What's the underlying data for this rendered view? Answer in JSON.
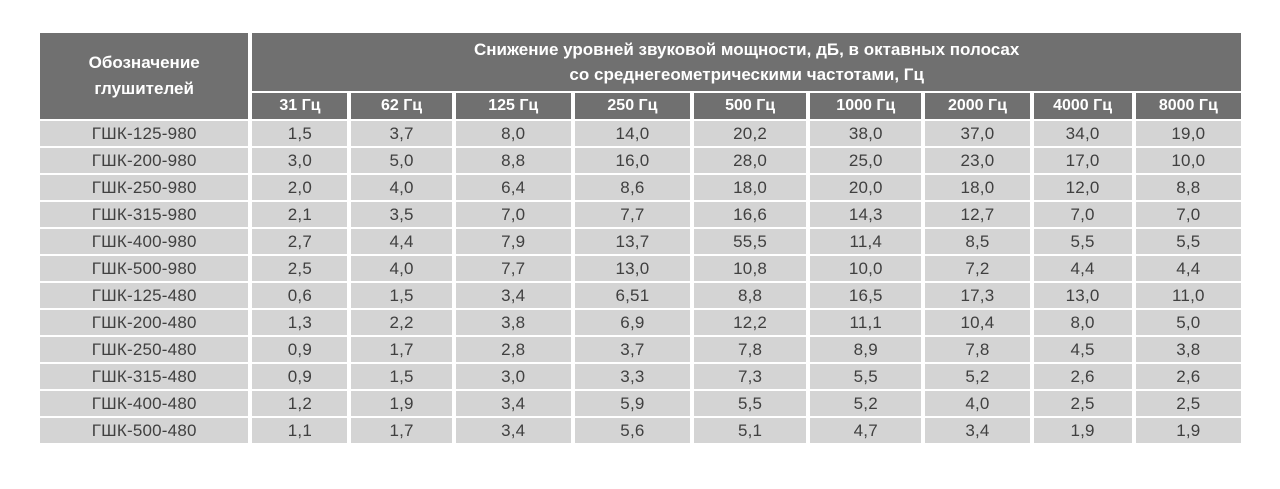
{
  "table": {
    "corner_header_line1": "Обозначение",
    "corner_header_line2": "глушителей",
    "main_header_line1": "Снижение уровней звуковой мощности, дБ, в октавных полосах",
    "main_header_line2": "со среднегеометрическими частотами, Гц",
    "frequency_headers": [
      "31 Гц",
      "62 Гц",
      "125 Гц",
      "250 Гц",
      "500 Гц",
      "1000 Гц",
      "2000 Гц",
      "4000 Гц",
      "8000 Гц"
    ],
    "rows": [
      {
        "designation": "ГШК-125-980",
        "values": [
          "1,5",
          "3,7",
          "8,0",
          "14,0",
          "20,2",
          "38,0",
          "37,0",
          "34,0",
          "19,0"
        ]
      },
      {
        "designation": "ГШК-200-980",
        "values": [
          "3,0",
          "5,0",
          "8,8",
          "16,0",
          "28,0",
          "25,0",
          "23,0",
          "17,0",
          "10,0"
        ]
      },
      {
        "designation": "ГШК-250-980",
        "values": [
          "2,0",
          "4,0",
          "6,4",
          "8,6",
          "18,0",
          "20,0",
          "18,0",
          "12,0",
          "8,8"
        ]
      },
      {
        "designation": "ГШК-315-980",
        "values": [
          "2,1",
          "3,5",
          "7,0",
          "7,7",
          "16,6",
          "14,3",
          "12,7",
          "7,0",
          "7,0"
        ]
      },
      {
        "designation": "ГШК-400-980",
        "values": [
          "2,7",
          "4,4",
          "7,9",
          "13,7",
          "55,5",
          "11,4",
          "8,5",
          "5,5",
          "5,5"
        ]
      },
      {
        "designation": "ГШК-500-980",
        "values": [
          "2,5",
          "4,0",
          "7,7",
          "13,0",
          "10,8",
          "10,0",
          "7,2",
          "4,4",
          "4,4"
        ]
      },
      {
        "designation": "ГШК-125-480",
        "values": [
          "0,6",
          "1,5",
          "3,4",
          "6,51",
          "8,8",
          "16,5",
          "17,3",
          "13,0",
          "11,0"
        ]
      },
      {
        "designation": "ГШК-200-480",
        "values": [
          "1,3",
          "2,2",
          "3,8",
          "6,9",
          "12,2",
          "11,1",
          "10,4",
          "8,0",
          "5,0"
        ]
      },
      {
        "designation": "ГШК-250-480",
        "values": [
          "0,9",
          "1,7",
          "2,8",
          "3,7",
          "7,8",
          "8,9",
          "7,8",
          "4,5",
          "3,8"
        ]
      },
      {
        "designation": "ГШК-315-480",
        "values": [
          "0,9",
          "1,5",
          "3,0",
          "3,3",
          "7,3",
          "5,5",
          "5,2",
          "2,6",
          "2,6"
        ]
      },
      {
        "designation": "ГШК-400-480",
        "values": [
          "1,2",
          "1,9",
          "3,4",
          "5,9",
          "5,5",
          "5,2",
          "4,0",
          "2,5",
          "2,5"
        ]
      },
      {
        "designation": "ГШК-500-480",
        "values": [
          "1,1",
          "1,7",
          "3,4",
          "5,6",
          "5,1",
          "4,7",
          "3,4",
          "1,9",
          "1,9"
        ]
      }
    ]
  },
  "colors": {
    "header_bg": "#707070",
    "header_text": "#ffffff",
    "cell_bg": "#d4d4d4",
    "cell_text": "#404040",
    "gap": "#ffffff"
  },
  "chart_data": {
    "type": "table",
    "title": "Снижение уровней звуковой мощности, дБ, в октавных полосах со среднегеометрическими частотами, Гц",
    "row_label_header": "Обозначение глушителей",
    "columns_hz": [
      31,
      62,
      125,
      250,
      500,
      1000,
      2000,
      4000,
      8000
    ],
    "unit": "дБ",
    "rows": [
      {
        "name": "ГШК-125-980",
        "values": [
          1.5,
          3.7,
          8.0,
          14.0,
          20.2,
          38.0,
          37.0,
          34.0,
          19.0
        ]
      },
      {
        "name": "ГШК-200-980",
        "values": [
          3.0,
          5.0,
          8.8,
          16.0,
          28.0,
          25.0,
          23.0,
          17.0,
          10.0
        ]
      },
      {
        "name": "ГШК-250-980",
        "values": [
          2.0,
          4.0,
          6.4,
          8.6,
          18.0,
          20.0,
          18.0,
          12.0,
          8.8
        ]
      },
      {
        "name": "ГШК-315-980",
        "values": [
          2.1,
          3.5,
          7.0,
          7.7,
          16.6,
          14.3,
          12.7,
          7.0,
          7.0
        ]
      },
      {
        "name": "ГШК-400-980",
        "values": [
          2.7,
          4.4,
          7.9,
          13.7,
          55.5,
          11.4,
          8.5,
          5.5,
          5.5
        ]
      },
      {
        "name": "ГШК-500-980",
        "values": [
          2.5,
          4.0,
          7.7,
          13.0,
          10.8,
          10.0,
          7.2,
          4.4,
          4.4
        ]
      },
      {
        "name": "ГШК-125-480",
        "values": [
          0.6,
          1.5,
          3.4,
          6.51,
          8.8,
          16.5,
          17.3,
          13.0,
          11.0
        ]
      },
      {
        "name": "ГШК-200-480",
        "values": [
          1.3,
          2.2,
          3.8,
          6.9,
          12.2,
          11.1,
          10.4,
          8.0,
          5.0
        ]
      },
      {
        "name": "ГШК-250-480",
        "values": [
          0.9,
          1.7,
          2.8,
          3.7,
          7.8,
          8.9,
          7.8,
          4.5,
          3.8
        ]
      },
      {
        "name": "ГШК-315-480",
        "values": [
          0.9,
          1.5,
          3.0,
          3.3,
          7.3,
          5.5,
          5.2,
          2.6,
          2.6
        ]
      },
      {
        "name": "ГШК-400-480",
        "values": [
          1.2,
          1.9,
          3.4,
          5.9,
          5.5,
          5.2,
          4.0,
          2.5,
          2.5
        ]
      },
      {
        "name": "ГШК-500-480",
        "values": [
          1.1,
          1.7,
          3.4,
          5.6,
          5.1,
          4.7,
          3.4,
          1.9,
          1.9
        ]
      }
    ]
  }
}
